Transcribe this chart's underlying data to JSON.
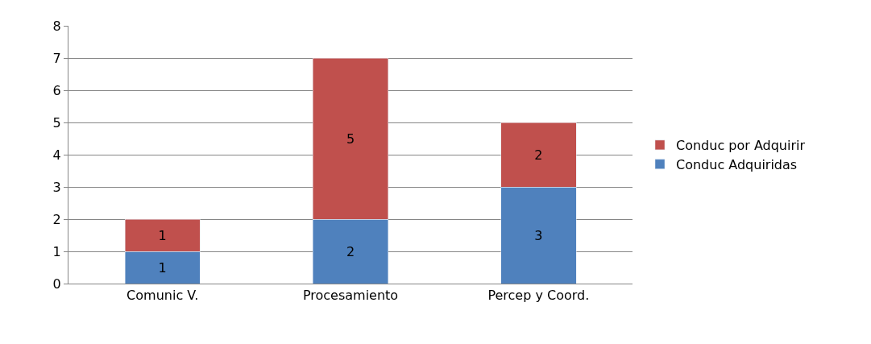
{
  "chart_data": {
    "type": "bar",
    "stacked": true,
    "categories": [
      "Comunic V.",
      "Procesamiento",
      "Percep y Coord."
    ],
    "series": [
      {
        "name": "Conduc Adquiridas",
        "color": "#4f81bd",
        "values": [
          1,
          2,
          3
        ]
      },
      {
        "name": "Conduc por Adquirir",
        "color": "#c0504d",
        "values": [
          1,
          5,
          2
        ]
      }
    ],
    "ylim": [
      0,
      8
    ],
    "yticks": [
      0,
      1,
      2,
      3,
      4,
      5,
      6,
      7,
      8
    ],
    "grid": "y",
    "legend": "right",
    "data_labels": true
  }
}
